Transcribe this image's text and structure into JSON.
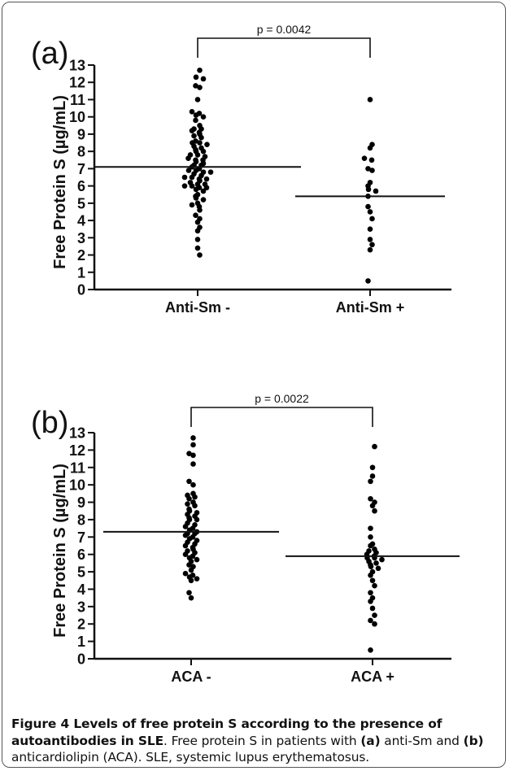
{
  "chart_data": [
    {
      "type": "scatter",
      "panel_label": "(a)",
      "ylabel": "Free Protein S (µg/mL)",
      "ylim": [
        0,
        13
      ],
      "yticks": [
        "0",
        "1",
        "2",
        "3",
        "4",
        "5",
        "6",
        "7",
        "8",
        "9",
        "10",
        "11",
        "12",
        "13"
      ],
      "categories": [
        "Anti-Sm -",
        "Anti-Sm +"
      ],
      "p_value_label": "p = 0.0042",
      "means": [
        7.1,
        5.4
      ],
      "groups": [
        {
          "category": "Anti-Sm -",
          "values": [
            12.7,
            12.3,
            12.2,
            11.8,
            11.7,
            11.0,
            10.3,
            10.2,
            10.1,
            10.0,
            9.8,
            9.5,
            9.3,
            9.3,
            9.2,
            9.1,
            9.0,
            8.9,
            8.8,
            8.6,
            8.5,
            8.5,
            8.4,
            8.3,
            8.2,
            8.1,
            8.0,
            8.0,
            7.8,
            7.8,
            7.7,
            7.6,
            7.5,
            7.5,
            7.4,
            7.3,
            7.2,
            7.2,
            7.1,
            7.0,
            6.9,
            6.9,
            6.8,
            6.8,
            6.7,
            6.6,
            6.5,
            6.5,
            6.4,
            6.4,
            6.3,
            6.2,
            6.1,
            6.1,
            6.0,
            6.0,
            5.9,
            5.9,
            5.8,
            5.7,
            5.5,
            5.4,
            5.3,
            5.2,
            5.0,
            4.9,
            4.8,
            4.6,
            4.3,
            4.1,
            3.9,
            3.6,
            3.4,
            2.9,
            2.4,
            2.0
          ]
        },
        {
          "category": "Anti-Sm +",
          "values": [
            11.0,
            8.4,
            8.2,
            7.6,
            7.5,
            7.0,
            6.9,
            6.2,
            6.0,
            5.8,
            5.7,
            5.4,
            4.8,
            4.5,
            4.1,
            3.5,
            2.9,
            2.6,
            2.3,
            0.5
          ]
        }
      ]
    },
    {
      "type": "scatter",
      "panel_label": "(b)",
      "ylabel": "Free Protein S (µg/mL)",
      "ylim": [
        0,
        13
      ],
      "yticks": [
        "0",
        "1",
        "2",
        "3",
        "4",
        "5",
        "6",
        "7",
        "8",
        "9",
        "10",
        "11",
        "12",
        "13"
      ],
      "categories": [
        "ACA -",
        "ACA +"
      ],
      "p_value_label": "p = 0.0022",
      "means": [
        7.3,
        5.9
      ],
      "groups": [
        {
          "category": "ACA -",
          "values": [
            12.7,
            12.3,
            11.8,
            11.7,
            11.2,
            10.2,
            10.0,
            9.5,
            9.4,
            9.3,
            9.2,
            9.0,
            8.9,
            8.8,
            8.6,
            8.5,
            8.4,
            8.3,
            8.2,
            8.1,
            8.0,
            8.0,
            7.8,
            7.7,
            7.6,
            7.5,
            7.4,
            7.3,
            7.2,
            7.2,
            7.1,
            7.0,
            6.9,
            6.8,
            6.7,
            6.6,
            6.5,
            6.4,
            6.3,
            6.2,
            6.1,
            6.0,
            5.9,
            5.8,
            5.7,
            5.6,
            5.4,
            5.3,
            5.1,
            4.9,
            4.8,
            4.7,
            4.6,
            4.5,
            3.8,
            3.5
          ]
        },
        {
          "category": "ACA +",
          "values": [
            12.2,
            11.0,
            10.5,
            10.2,
            9.2,
            9.0,
            8.8,
            8.5,
            7.5,
            7.0,
            6.6,
            6.5,
            6.3,
            6.2,
            6.1,
            6.0,
            5.9,
            5.8,
            5.8,
            5.7,
            5.6,
            5.5,
            5.4,
            5.3,
            5.2,
            5.0,
            4.8,
            4.5,
            4.2,
            3.8,
            3.5,
            3.3,
            2.9,
            2.5,
            2.2,
            2.0,
            0.5
          ]
        }
      ]
    }
  ],
  "caption": {
    "bold_lead": "Figure 4 Levels of free protein S according to the presence of autoantibodies in SLE",
    "text_1": ". Free protein S in patients with ",
    "label_a": "(a)",
    "text_2": " anti-Sm and ",
    "label_b": "(b)",
    "text_3": " anticardiolipin (ACA). SLE, systemic lupus erythematosus."
  }
}
